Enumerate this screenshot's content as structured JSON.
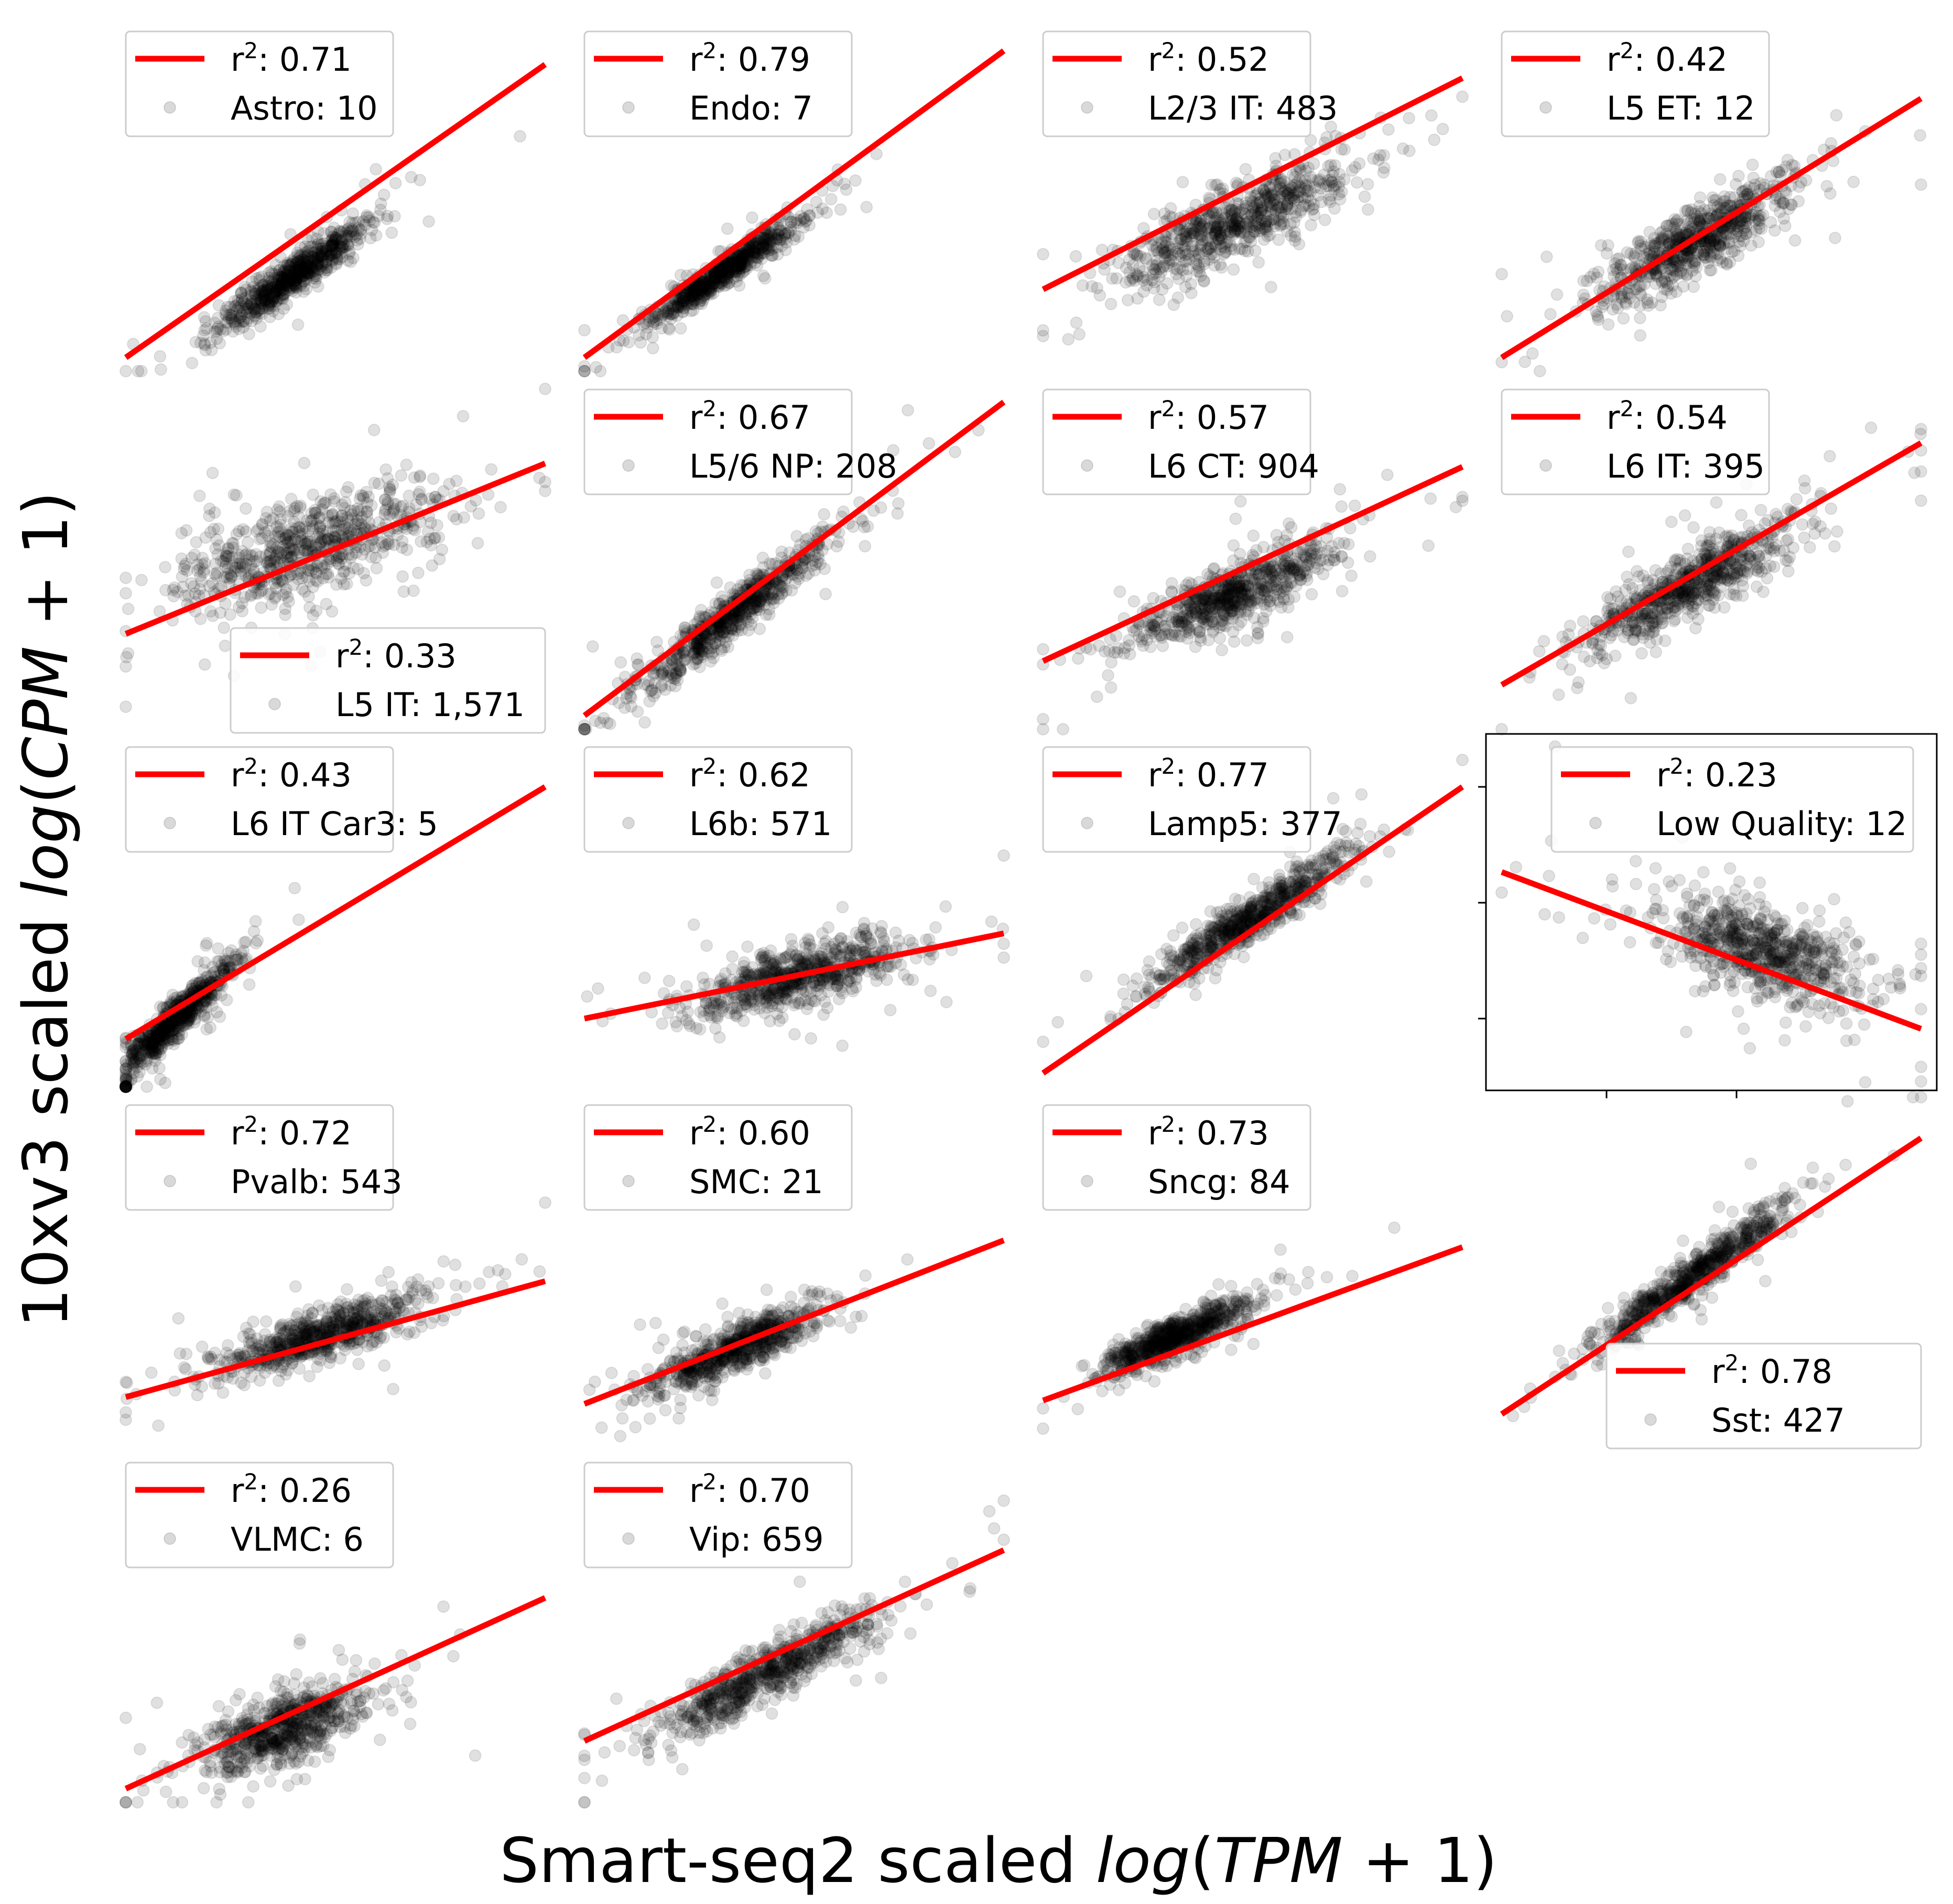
{
  "figure": {
    "xlabel": {
      "prefix": "Smart-seq2 scaled ",
      "fn": "log",
      "open": "(",
      "var": "TPM",
      "rest": " + 1)"
    },
    "ylabel": {
      "prefix": "10xv3 scaled ",
      "fn": "log",
      "open": "(",
      "var": "CPM",
      "rest": " + 1)"
    }
  },
  "legend_prefix": "r",
  "legend_sup": "2",
  "colors": {
    "points": "#000000",
    "fit_line": "#ff0000",
    "point_alpha": 0.12
  },
  "chart_data": [
    {
      "type": "scatter",
      "label": "Astro: 10",
      "r2_label": ": 0.71",
      "row": 0,
      "col": 0,
      "cx": 0.4,
      "cy": 0.26,
      "spread": 0.09,
      "slope": 0.85,
      "corr": 0.84,
      "fit": [
        [
          0.0,
          0.02
        ],
        [
          1.0,
          0.88
        ]
      ],
      "legend": "upper-left"
    },
    {
      "type": "scatter",
      "label": "Endo: 7",
      "r2_label": ": 0.79",
      "row": 0,
      "col": 1,
      "cx": 0.33,
      "cy": 0.27,
      "spread": 0.09,
      "slope": 0.85,
      "corr": 0.89,
      "fit": [
        [
          0.0,
          0.02
        ],
        [
          1.0,
          0.92
        ]
      ],
      "legend": "upper-left"
    },
    {
      "type": "scatter",
      "label": "L2/3 IT: 483",
      "r2_label": ": 0.52",
      "row": 0,
      "col": 2,
      "cx": 0.46,
      "cy": 0.42,
      "spread": 0.14,
      "slope": 0.55,
      "corr": 0.72,
      "fit": [
        [
          0.0,
          0.22
        ],
        [
          1.0,
          0.84
        ]
      ],
      "legend": "upper-left"
    },
    {
      "type": "scatter",
      "label": "L5 ET: 12",
      "r2_label": ": 0.42",
      "row": 0,
      "col": 3,
      "cx": 0.47,
      "cy": 0.37,
      "spread": 0.12,
      "slope": 0.7,
      "corr": 0.65,
      "fit": [
        [
          0.0,
          0.02
        ],
        [
          1.0,
          0.78
        ]
      ],
      "legend": "upper-left"
    },
    {
      "type": "scatter",
      "label": "L5 IT: 1,571",
      "r2_label": ": 0.33",
      "row": 1,
      "col": 0,
      "cx": 0.44,
      "cy": 0.52,
      "spread": 0.16,
      "slope": 0.35,
      "corr": 0.57,
      "fit": [
        [
          0.0,
          0.26
        ],
        [
          1.0,
          0.76
        ]
      ],
      "legend": "lower-right"
    },
    {
      "type": "scatter",
      "label": "L5/6 NP: 208",
      "r2_label": ": 0.67",
      "row": 1,
      "col": 1,
      "cx": 0.36,
      "cy": 0.32,
      "spread": 0.11,
      "slope": 0.95,
      "corr": 0.82,
      "fit": [
        [
          0.0,
          0.02
        ],
        [
          1.0,
          0.94
        ]
      ],
      "legend": "upper-left"
    },
    {
      "type": "scatter",
      "label": "L6 CT: 904",
      "r2_label": ": 0.57",
      "row": 1,
      "col": 2,
      "cx": 0.46,
      "cy": 0.38,
      "spread": 0.12,
      "slope": 0.5,
      "corr": 0.75,
      "fit": [
        [
          0.0,
          0.18
        ],
        [
          1.0,
          0.75
        ]
      ],
      "legend": "upper-left"
    },
    {
      "type": "scatter",
      "label": "L6 IT: 395",
      "r2_label": ": 0.54",
      "row": 1,
      "col": 3,
      "cx": 0.44,
      "cy": 0.4,
      "spread": 0.12,
      "slope": 0.65,
      "corr": 0.73,
      "fit": [
        [
          0.0,
          0.11
        ],
        [
          1.0,
          0.82
        ]
      ],
      "legend": "upper-left"
    },
    {
      "type": "scatter",
      "label": "L6 IT Car3: 5",
      "r2_label": ": 0.43",
      "row": 2,
      "col": 0,
      "cx": 0.12,
      "cy": 0.18,
      "spread": 0.07,
      "slope": 1.2,
      "corr": 0.66,
      "fit": [
        [
          0.0,
          0.12
        ],
        [
          1.0,
          0.86
        ]
      ],
      "legend": "upper-left"
    },
    {
      "type": "scatter",
      "label": "L6b: 571",
      "r2_label": ": 0.62",
      "row": 2,
      "col": 1,
      "cx": 0.5,
      "cy": 0.3,
      "spread": 0.13,
      "slope": 0.3,
      "corr": 0.79,
      "fit": [
        [
          0.0,
          0.18
        ],
        [
          1.0,
          0.43
        ]
      ],
      "legend": "upper-left"
    },
    {
      "type": "scatter",
      "label": "Lamp5: 377",
      "r2_label": ": 0.77",
      "row": 2,
      "col": 2,
      "cx": 0.5,
      "cy": 0.48,
      "spread": 0.12,
      "slope": 0.8,
      "corr": 0.88,
      "fit": [
        [
          0.0,
          0.02
        ],
        [
          1.0,
          0.86
        ]
      ],
      "legend": "upper-left"
    },
    {
      "type": "scatter",
      "label": "Low Quality: 12",
      "r2_label": ": 0.23",
      "row": 2,
      "col": 3,
      "cx": 0.62,
      "cy": 0.38,
      "spread": 0.13,
      "slope": -0.4,
      "corr": -0.48,
      "fit": [
        [
          0.0,
          0.61
        ],
        [
          1.0,
          0.15
        ]
      ],
      "legend": "upper-right",
      "framed": true
    },
    {
      "type": "scatter",
      "label": "Pvalb: 543",
      "r2_label": ": 0.72",
      "row": 3,
      "col": 0,
      "cx": 0.46,
      "cy": 0.3,
      "spread": 0.13,
      "slope": 0.4,
      "corr": 0.85,
      "fit": [
        [
          0.0,
          0.12
        ],
        [
          1.0,
          0.46
        ]
      ],
      "legend": "upper-left"
    },
    {
      "type": "scatter",
      "label": "SMC: 21",
      "r2_label": ": 0.60",
      "row": 3,
      "col": 1,
      "cx": 0.36,
      "cy": 0.26,
      "spread": 0.1,
      "slope": 0.55,
      "corr": 0.77,
      "fit": [
        [
          0.0,
          0.1
        ],
        [
          1.0,
          0.58
        ]
      ],
      "legend": "upper-left"
    },
    {
      "type": "scatter",
      "label": "Sncg: 84",
      "r2_label": ": 0.73",
      "row": 3,
      "col": 2,
      "cx": 0.32,
      "cy": 0.3,
      "spread": 0.09,
      "slope": 0.55,
      "corr": 0.85,
      "fit": [
        [
          0.0,
          0.11
        ],
        [
          1.0,
          0.56
        ]
      ],
      "legend": "upper-left"
    },
    {
      "type": "scatter",
      "label": "Sst: 427",
      "r2_label": ": 0.78",
      "row": 3,
      "col": 3,
      "cx": 0.45,
      "cy": 0.47,
      "spread": 0.12,
      "slope": 0.9,
      "corr": 0.88,
      "fit": [
        [
          0.0,
          0.07
        ],
        [
          1.0,
          0.88
        ]
      ],
      "legend": "lower-right"
    },
    {
      "type": "scatter",
      "label": "VLMC: 6",
      "r2_label": ": 0.26",
      "row": 4,
      "col": 0,
      "cx": 0.38,
      "cy": 0.2,
      "spread": 0.1,
      "slope": 0.4,
      "corr": 0.51,
      "fit": [
        [
          0.0,
          0.02
        ],
        [
          1.0,
          0.58
        ]
      ],
      "legend": "upper-left"
    },
    {
      "type": "scatter",
      "label": "Vip: 659",
      "r2_label": ": 0.70",
      "row": 4,
      "col": 1,
      "cx": 0.44,
      "cy": 0.36,
      "spread": 0.13,
      "slope": 0.65,
      "corr": 0.84,
      "fit": [
        [
          0.0,
          0.16
        ],
        [
          1.0,
          0.72
        ]
      ],
      "legend": "upper-left"
    }
  ]
}
